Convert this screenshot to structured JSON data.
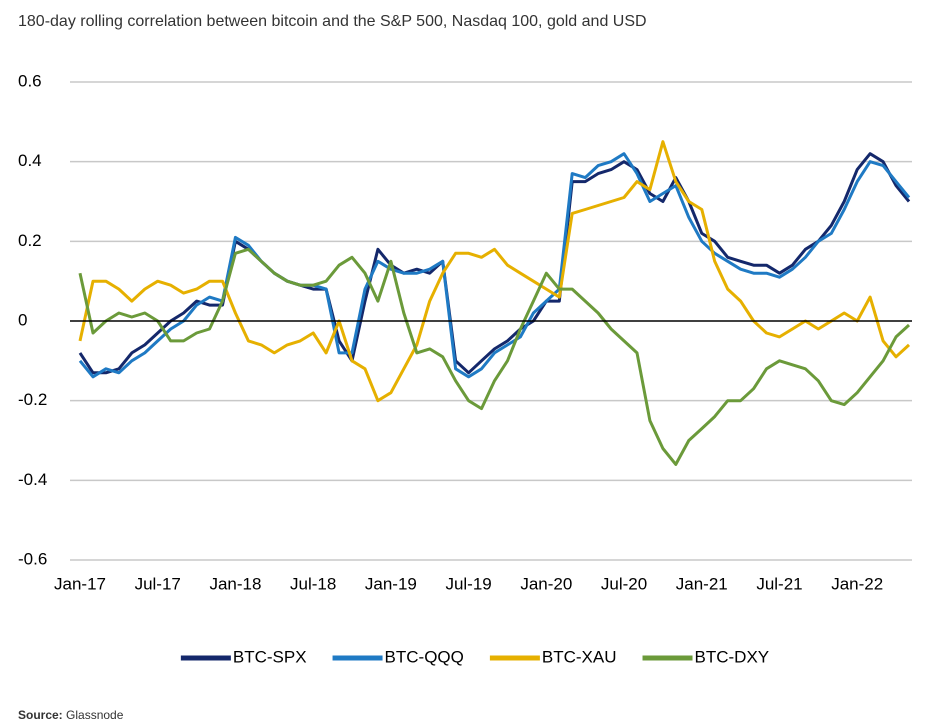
{
  "chart_data": {
    "type": "line",
    "title": "180-day rolling correlation between bitcoin and the S&P 500, Nasdaq 100, gold and USD",
    "categories": [
      "Jan-17",
      null,
      null,
      null,
      null,
      null,
      "Jul-17",
      null,
      null,
      null,
      null,
      null,
      "Jan-18",
      null,
      null,
      null,
      null,
      null,
      "Jul-18",
      null,
      null,
      null,
      null,
      null,
      "Jan-19",
      null,
      null,
      null,
      null,
      null,
      "Jul-19",
      null,
      null,
      null,
      null,
      null,
      "Jan-20",
      null,
      null,
      null,
      null,
      null,
      "Jul-20",
      null,
      null,
      null,
      null,
      null,
      "Jan-21",
      null,
      null,
      null,
      null,
      null,
      "Jul-21",
      null,
      null,
      null,
      null,
      null,
      "Jan-22",
      null,
      null,
      null,
      null
    ],
    "series": [
      {
        "name": "BTC-SPX",
        "color": "#14286b",
        "values": [
          -0.08,
          -0.13,
          -0.13,
          -0.12,
          -0.08,
          -0.06,
          -0.03,
          0.0,
          0.02,
          0.05,
          0.04,
          0.04,
          0.2,
          0.18,
          0.15,
          0.12,
          0.1,
          0.09,
          0.08,
          0.08,
          -0.05,
          -0.1,
          0.05,
          0.18,
          0.14,
          0.12,
          0.13,
          0.12,
          0.15,
          -0.1,
          -0.13,
          -0.1,
          -0.07,
          -0.05,
          -0.02,
          0.0,
          0.05,
          0.05,
          0.35,
          0.35,
          0.37,
          0.38,
          0.4,
          0.38,
          0.32,
          0.3,
          0.36,
          0.3,
          0.22,
          0.2,
          0.16,
          0.15,
          0.14,
          0.14,
          0.12,
          0.14,
          0.18,
          0.2,
          0.24,
          0.3,
          0.38,
          0.42,
          0.4,
          0.34,
          0.3
        ]
      },
      {
        "name": "BTC-QQQ",
        "color": "#1f7ac4",
        "values": [
          -0.1,
          -0.14,
          -0.12,
          -0.13,
          -0.1,
          -0.08,
          -0.05,
          -0.02,
          0.0,
          0.04,
          0.06,
          0.05,
          0.21,
          0.19,
          0.15,
          0.12,
          0.1,
          0.09,
          0.09,
          0.08,
          -0.08,
          -0.08,
          0.08,
          0.15,
          0.13,
          0.12,
          0.12,
          0.13,
          0.15,
          -0.12,
          -0.14,
          -0.12,
          -0.08,
          -0.06,
          -0.04,
          0.02,
          0.05,
          0.08,
          0.37,
          0.36,
          0.39,
          0.4,
          0.42,
          0.37,
          0.3,
          0.32,
          0.34,
          0.26,
          0.2,
          0.17,
          0.15,
          0.13,
          0.12,
          0.12,
          0.11,
          0.13,
          0.16,
          0.2,
          0.22,
          0.28,
          0.35,
          0.4,
          0.39,
          0.35,
          0.31
        ]
      },
      {
        "name": "BTC-XAU",
        "color": "#e6b000",
        "values": [
          -0.05,
          0.1,
          0.1,
          0.08,
          0.05,
          0.08,
          0.1,
          0.09,
          0.07,
          0.08,
          0.1,
          0.1,
          0.02,
          -0.05,
          -0.06,
          -0.08,
          -0.06,
          -0.05,
          -0.03,
          -0.08,
          0.0,
          -0.1,
          -0.12,
          -0.2,
          -0.18,
          -0.12,
          -0.06,
          0.05,
          0.12,
          0.17,
          0.17,
          0.16,
          0.18,
          0.14,
          0.12,
          0.1,
          0.08,
          0.06,
          0.27,
          0.28,
          0.29,
          0.3,
          0.31,
          0.35,
          0.33,
          0.45,
          0.35,
          0.3,
          0.28,
          0.15,
          0.08,
          0.05,
          0.0,
          -0.03,
          -0.04,
          -0.02,
          0.0,
          -0.02,
          0.0,
          0.02,
          0.0,
          0.06,
          -0.05,
          -0.09,
          -0.06
        ]
      },
      {
        "name": "BTC-DXY",
        "color": "#6b9a3a",
        "values": [
          0.12,
          -0.03,
          0.0,
          0.02,
          0.01,
          0.02,
          0.0,
          -0.05,
          -0.05,
          -0.03,
          -0.02,
          0.05,
          0.17,
          0.18,
          0.15,
          0.12,
          0.1,
          0.09,
          0.09,
          0.1,
          0.14,
          0.16,
          0.12,
          0.05,
          0.15,
          0.02,
          -0.08,
          -0.07,
          -0.09,
          -0.15,
          -0.2,
          -0.22,
          -0.15,
          -0.1,
          -0.02,
          0.05,
          0.12,
          0.08,
          0.08,
          0.05,
          0.02,
          -0.02,
          -0.05,
          -0.08,
          -0.25,
          -0.32,
          -0.36,
          -0.3,
          -0.27,
          -0.24,
          -0.2,
          -0.2,
          -0.17,
          -0.12,
          -0.1,
          -0.11,
          -0.12,
          -0.15,
          -0.2,
          -0.21,
          -0.18,
          -0.14,
          -0.1,
          -0.04,
          -0.01
        ]
      }
    ],
    "ylim": [
      -0.6,
      0.6
    ],
    "yticks": [
      0.6,
      0.4,
      0.2,
      0,
      -0.2,
      -0.4,
      -0.6
    ],
    "grid": true,
    "source_label": "Source:",
    "source": "Glassnode"
  }
}
